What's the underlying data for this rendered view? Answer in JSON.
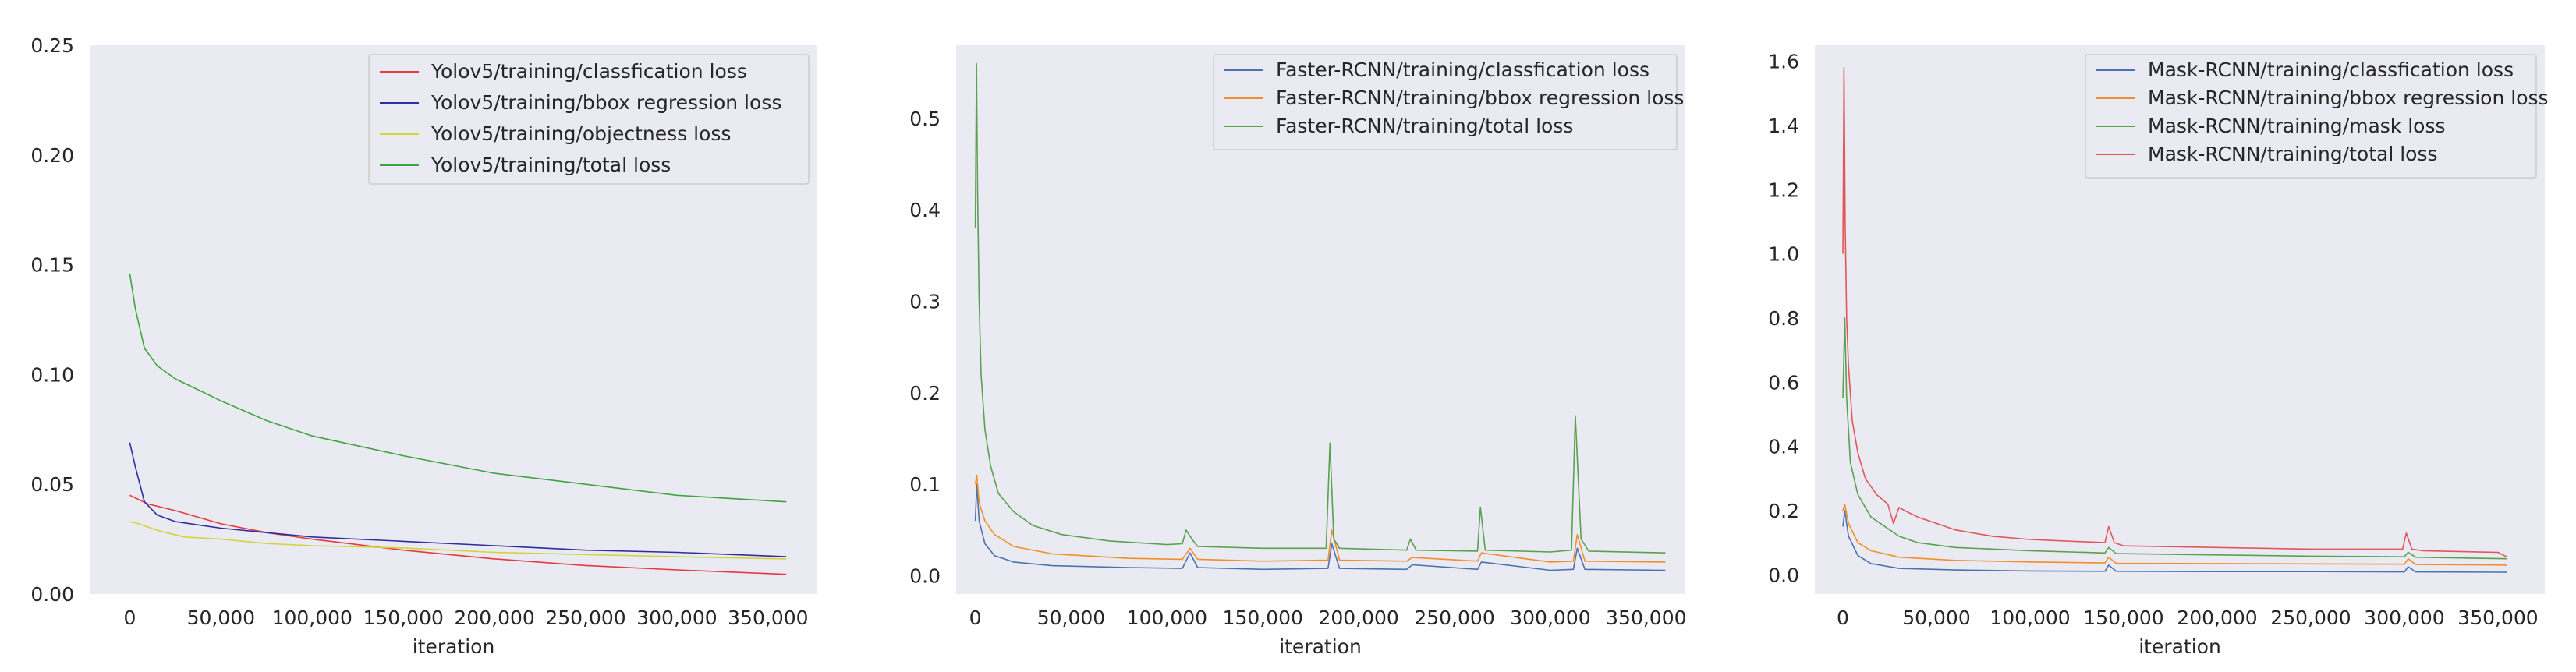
{
  "chart_data": [
    {
      "type": "line",
      "title": "",
      "xlabel": "iteration",
      "ylabel": "",
      "xlim": [
        -22000,
        377000
      ],
      "ylim": [
        0,
        0.25
      ],
      "x_ticks": [
        0,
        50000,
        100000,
        150000,
        200000,
        250000,
        300000,
        350000
      ],
      "x_tick_labels": [
        "0",
        "50,000",
        "100,000",
        "150,000",
        "200,000",
        "250,000",
        "300,000",
        "350,000"
      ],
      "y_ticks": [
        0,
        0.05,
        0.1,
        0.15,
        0.2,
        0.25
      ],
      "y_tick_labels": [
        "0.00",
        "0.05",
        "0.10",
        "0.15",
        "0.20",
        "0.25"
      ],
      "grid": false,
      "legend_position": "top-right",
      "series": [
        {
          "name": "Yolov5/training/classfication loss",
          "color": "#e8393c",
          "x": [
            0,
            10000,
            25000,
            50000,
            75000,
            100000,
            150000,
            200000,
            250000,
            300000,
            360000
          ],
          "y": [
            0.045,
            0.041,
            0.038,
            0.032,
            0.028,
            0.025,
            0.02,
            0.016,
            0.013,
            0.011,
            0.009
          ]
        },
        {
          "name": "Yolov5/training/bbox regression loss",
          "color": "#2e2ea0",
          "x": [
            0,
            3000,
            8000,
            15000,
            25000,
            50000,
            75000,
            100000,
            150000,
            200000,
            250000,
            300000,
            360000
          ],
          "y": [
            0.069,
            0.058,
            0.042,
            0.036,
            0.033,
            0.03,
            0.028,
            0.026,
            0.024,
            0.022,
            0.02,
            0.019,
            0.017
          ]
        },
        {
          "name": "Yolov5/training/objectness loss",
          "color": "#d4d43a",
          "x": [
            0,
            5000,
            15000,
            30000,
            50000,
            75000,
            100000,
            150000,
            200000,
            250000,
            300000,
            360000
          ],
          "y": [
            0.033,
            0.032,
            0.029,
            0.026,
            0.025,
            0.023,
            0.022,
            0.021,
            0.019,
            0.018,
            0.017,
            0.016
          ]
        },
        {
          "name": "Yolov5/training/total loss",
          "color": "#3ea43e",
          "x": [
            0,
            3000,
            8000,
            15000,
            25000,
            50000,
            75000,
            100000,
            150000,
            200000,
            250000,
            300000,
            360000
          ],
          "y": [
            0.146,
            0.13,
            0.112,
            0.104,
            0.098,
            0.088,
            0.079,
            0.072,
            0.063,
            0.055,
            0.05,
            0.045,
            0.042
          ]
        }
      ]
    },
    {
      "type": "line",
      "title": "",
      "xlabel": "iteration",
      "ylabel": "",
      "xlim": [
        -10000,
        370000
      ],
      "ylim": [
        -0.02,
        0.58
      ],
      "x_ticks": [
        0,
        50000,
        100000,
        150000,
        200000,
        250000,
        300000,
        350000
      ],
      "x_tick_labels": [
        "0",
        "50,000",
        "100,000",
        "150,000",
        "200,000",
        "250,000",
        "300,000",
        "350,000"
      ],
      "y_ticks": [
        0,
        0.1,
        0.2,
        0.3,
        0.4,
        0.5
      ],
      "y_tick_labels": [
        "0.0",
        "0.1",
        "0.2",
        "0.3",
        "0.4",
        "0.5"
      ],
      "grid": false,
      "legend_position": "top-right",
      "series": [
        {
          "name": "Faster-RCNN/training/classfication loss",
          "color": "#4c72b0",
          "x": [
            0,
            800,
            2000,
            5000,
            10000,
            20000,
            40000,
            80000,
            108000,
            112000,
            116000,
            150000,
            184000,
            186000,
            190000,
            225000,
            228000,
            262000,
            264000,
            300000,
            312000,
            314000,
            318000,
            360000
          ],
          "y": [
            0.06,
            0.1,
            0.06,
            0.035,
            0.022,
            0.015,
            0.011,
            0.009,
            0.008,
            0.025,
            0.009,
            0.007,
            0.008,
            0.035,
            0.008,
            0.007,
            0.012,
            0.007,
            0.015,
            0.006,
            0.007,
            0.03,
            0.007,
            0.006
          ]
        },
        {
          "name": "Faster-RCNN/training/bbox regression loss",
          "color": "#f28e2b",
          "x": [
            0,
            800,
            2000,
            5000,
            10000,
            20000,
            40000,
            80000,
            108000,
            112000,
            116000,
            150000,
            184000,
            186000,
            190000,
            225000,
            228000,
            262000,
            264000,
            300000,
            312000,
            314000,
            318000,
            360000
          ],
          "y": [
            0.1,
            0.11,
            0.08,
            0.06,
            0.045,
            0.032,
            0.024,
            0.019,
            0.018,
            0.03,
            0.018,
            0.016,
            0.017,
            0.05,
            0.017,
            0.016,
            0.02,
            0.016,
            0.025,
            0.015,
            0.016,
            0.045,
            0.016,
            0.015
          ]
        },
        {
          "name": "Faster-RCNN/training/total loss",
          "color": "#59a14f",
          "x": [
            0,
            600,
            1200,
            2000,
            3000,
            5000,
            8000,
            12000,
            20000,
            30000,
            45000,
            70000,
            100000,
            108000,
            110000,
            113000,
            116000,
            150000,
            183000,
            185000,
            187000,
            190000,
            225000,
            227000,
            230000,
            262000,
            263500,
            266000,
            300000,
            311000,
            313000,
            316000,
            320000,
            360000
          ],
          "y": [
            0.38,
            0.56,
            0.42,
            0.3,
            0.22,
            0.16,
            0.12,
            0.09,
            0.07,
            0.055,
            0.045,
            0.038,
            0.034,
            0.035,
            0.05,
            0.04,
            0.032,
            0.03,
            0.03,
            0.145,
            0.04,
            0.03,
            0.028,
            0.04,
            0.028,
            0.027,
            0.075,
            0.028,
            0.026,
            0.028,
            0.175,
            0.04,
            0.027,
            0.025
          ]
        }
      ]
    },
    {
      "type": "line",
      "title": "",
      "xlabel": "iteration",
      "ylabel": "",
      "xlim": [
        -15000,
        375000
      ],
      "ylim": [
        -0.06,
        1.65
      ],
      "x_ticks": [
        0,
        50000,
        100000,
        150000,
        200000,
        250000,
        300000,
        350000
      ],
      "x_tick_labels": [
        "0",
        "50,000",
        "100,000",
        "150,000",
        "200,000",
        "250,000",
        "300,000",
        "350,000"
      ],
      "y_ticks": [
        0,
        0.2,
        0.4,
        0.6,
        0.8,
        1.0,
        1.2,
        1.4,
        1.6
      ],
      "y_tick_labels": [
        "0.0",
        "0.2",
        "0.4",
        "0.6",
        "0.8",
        "1.0",
        "1.2",
        "1.4",
        "1.6"
      ],
      "grid": false,
      "legend_position": "top-right",
      "series": [
        {
          "name": "Mask-RCNN/training/classfication loss",
          "color": "#4c72b0",
          "x": [
            0,
            1000,
            3000,
            8000,
            15000,
            30000,
            60000,
            100000,
            140000,
            142000,
            146000,
            200000,
            250000,
            300000,
            302000,
            306000,
            355000
          ],
          "y": [
            0.15,
            0.2,
            0.12,
            0.06,
            0.035,
            0.02,
            0.015,
            0.012,
            0.011,
            0.03,
            0.011,
            0.01,
            0.01,
            0.009,
            0.025,
            0.009,
            0.008
          ]
        },
        {
          "name": "Mask-RCNN/training/bbox regression loss",
          "color": "#f28e2b",
          "x": [
            0,
            1000,
            3000,
            8000,
            15000,
            30000,
            60000,
            100000,
            140000,
            142000,
            146000,
            200000,
            250000,
            300000,
            302000,
            306000,
            355000
          ],
          "y": [
            0.2,
            0.22,
            0.16,
            0.1,
            0.075,
            0.055,
            0.045,
            0.04,
            0.037,
            0.055,
            0.036,
            0.035,
            0.034,
            0.033,
            0.05,
            0.032,
            0.03
          ]
        },
        {
          "name": "Mask-RCNN/training/mask loss",
          "color": "#59a14f",
          "x": [
            0,
            1000,
            2000,
            4000,
            8000,
            15000,
            25000,
            30000,
            40000,
            60000,
            100000,
            140000,
            142000,
            146000,
            200000,
            250000,
            300000,
            302000,
            306000,
            355000
          ],
          "y": [
            0.55,
            0.8,
            0.55,
            0.35,
            0.25,
            0.18,
            0.14,
            0.12,
            0.1,
            0.085,
            0.075,
            0.068,
            0.085,
            0.066,
            0.062,
            0.058,
            0.056,
            0.07,
            0.055,
            0.05
          ]
        },
        {
          "name": "Mask-RCNN/training/total loss",
          "color": "#e15759",
          "x": [
            0,
            600,
            1200,
            2000,
            3000,
            5000,
            8000,
            12000,
            18000,
            24000,
            27000,
            30000,
            33000,
            40000,
            50000,
            60000,
            80000,
            100000,
            140000,
            142000,
            145000,
            150000,
            200000,
            250000,
            299000,
            301000,
            304000,
            310000,
            350000,
            355000
          ],
          "y": [
            1.0,
            1.58,
            1.1,
            0.8,
            0.65,
            0.48,
            0.38,
            0.3,
            0.25,
            0.22,
            0.16,
            0.21,
            0.2,
            0.18,
            0.16,
            0.14,
            0.12,
            0.11,
            0.1,
            0.15,
            0.1,
            0.09,
            0.085,
            0.08,
            0.08,
            0.13,
            0.08,
            0.075,
            0.07,
            0.055
          ]
        }
      ]
    }
  ]
}
